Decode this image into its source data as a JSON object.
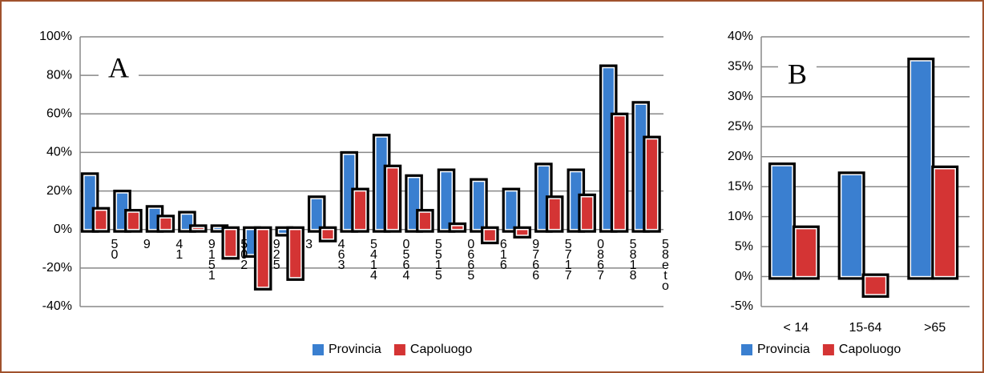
{
  "chart_data": [
    {
      "type": "bar",
      "annotation": "A",
      "categories": [
        "50",
        "9",
        "41",
        "9151",
        "502",
        "925",
        "3",
        "463",
        "5414",
        "0564",
        "5515",
        "0665",
        "616",
        "9766",
        "5717",
        "0867",
        "5818",
        "58eto"
      ],
      "series": [
        {
          "name": "Provincia",
          "color": "#3a7fd0",
          "values": [
            28,
            19,
            11,
            8,
            1,
            -13,
            -2,
            16,
            39,
            48,
            27,
            30,
            25,
            20,
            33,
            30,
            84,
            65
          ]
        },
        {
          "name": "Capoluogo",
          "color": "#d43434",
          "values": [
            10,
            9,
            6,
            1,
            -14,
            -30,
            -25,
            -5,
            20,
            32,
            9,
            2,
            -6,
            -3,
            16,
            17,
            59,
            47
          ]
        }
      ],
      "ylim": [
        -40,
        100
      ],
      "yticks": [
        {
          "value": -40,
          "label": "-40%"
        },
        {
          "value": -20,
          "label": "-20%"
        },
        {
          "value": 0,
          "label": "0%"
        },
        {
          "value": 20,
          "label": "20%"
        },
        {
          "value": 40,
          "label": "40%"
        },
        {
          "value": 60,
          "label": "60%"
        },
        {
          "value": 80,
          "label": "80%"
        },
        {
          "value": 100,
          "label": "100%"
        }
      ],
      "grid": true
    },
    {
      "type": "bar",
      "annotation": "B",
      "categories": [
        "< 14",
        "15-64",
        ">65"
      ],
      "series": [
        {
          "name": "Provincia",
          "color": "#3a7fd0",
          "values": [
            18.5,
            17,
            36
          ]
        },
        {
          "name": "Capoluogo",
          "color": "#d43434",
          "values": [
            8,
            -3,
            18
          ]
        }
      ],
      "ylim": [
        -5,
        40
      ],
      "yticks": [
        {
          "value": -5,
          "label": "-5%"
        },
        {
          "value": 0,
          "label": "0%"
        },
        {
          "value": 5,
          "label": "5%"
        },
        {
          "value": 10,
          "label": "10%"
        },
        {
          "value": 15,
          "label": "15%"
        },
        {
          "value": 20,
          "label": "20%"
        },
        {
          "value": 25,
          "label": "25%"
        },
        {
          "value": 30,
          "label": "30%"
        },
        {
          "value": 35,
          "label": "35%"
        },
        {
          "value": 40,
          "label": "40%"
        }
      ],
      "grid": true
    }
  ]
}
